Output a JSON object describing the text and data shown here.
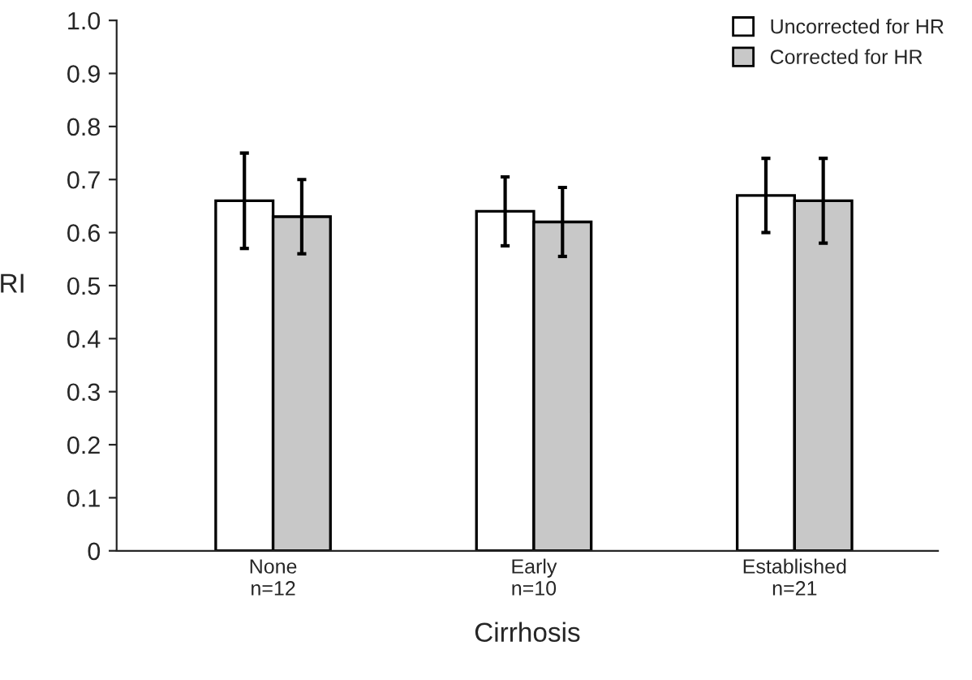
{
  "chart_data": {
    "type": "bar",
    "xlabel": "Cirrhosis",
    "ylabel": "RI",
    "categories": [
      "None\nn=12",
      "Early\nn=10",
      "Established\nn=21"
    ],
    "series": [
      {
        "name": "Uncorrected for HR",
        "color": "#ffffff",
        "values": [
          0.66,
          0.64,
          0.67
        ],
        "errors": [
          0.09,
          0.065,
          0.07
        ]
      },
      {
        "name": "Corrected for HR",
        "color": "#c8c8c8",
        "values": [
          0.63,
          0.62,
          0.66
        ],
        "errors": [
          0.07,
          0.065,
          0.08
        ]
      }
    ],
    "ylim": [
      0,
      1.0
    ],
    "yticks": [
      {
        "value": 0,
        "label": "0"
      },
      0.1,
      0.2,
      0.3,
      0.4,
      0.5,
      0.6,
      0.7,
      0.8,
      0.9,
      {
        "value": 1.0,
        "label": "1.0"
      }
    ],
    "grid": false,
    "legend": "top right"
  }
}
